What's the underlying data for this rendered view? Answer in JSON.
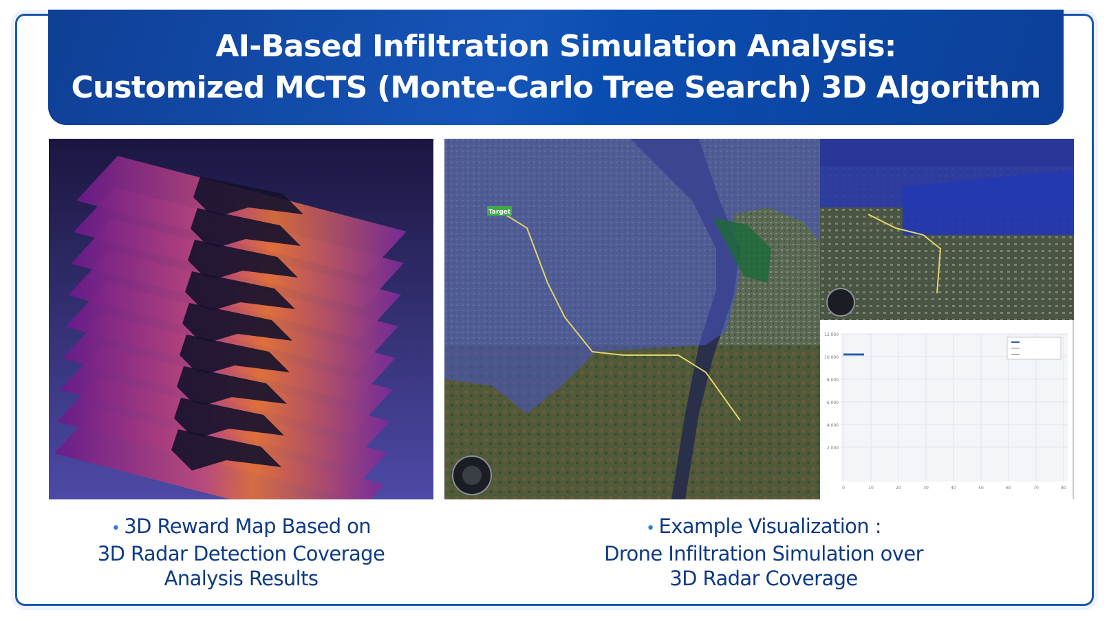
{
  "title": {
    "line1": "AI-Based Infiltration Simulation Analysis:",
    "line2": "Customized MCTS (Monte-Carlo Tree Search) 3D Algorithm"
  },
  "left_panel": {
    "image": "3D reward map layered heat planes"
  },
  "right_panel": {
    "map_label": "Target",
    "chart": {
      "y_ticks": [
        "12,000",
        "10,000",
        "8,000",
        "6,000",
        "4,000",
        "2,000"
      ],
      "x_ticks": [
        "0",
        "10",
        "20",
        "30",
        "40",
        "50",
        "60",
        "70",
        "80"
      ]
    }
  },
  "captions": {
    "left": {
      "bullet": "•",
      "line1": "3D Reward Map Based on",
      "line2": "3D Radar Detection Coverage",
      "line3": "Analysis Results"
    },
    "right": {
      "bullet": "•",
      "line1": "Example Visualization :",
      "line2": "Drone Infiltration Simulation over",
      "line3": "3D Radar Coverage"
    }
  },
  "colors": {
    "banner": "#1555b8",
    "caption": "#0e3a86",
    "border": "#1a56b0"
  }
}
